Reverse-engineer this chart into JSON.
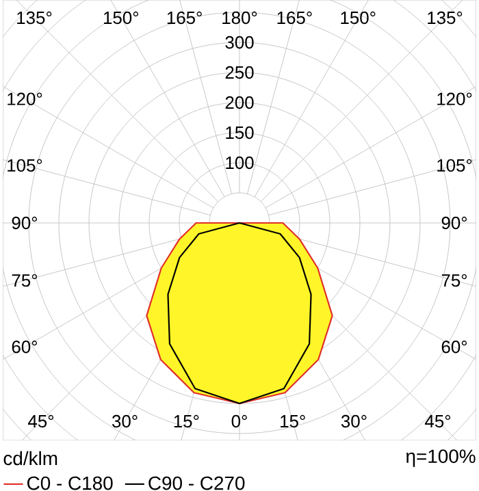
{
  "chart_data": {
    "type": "radar",
    "categories": [
      "180°",
      "165°",
      "150°",
      "135°",
      "120°",
      "105°",
      "90°",
      "75°",
      "60°",
      "45°",
      "30°",
      "15°",
      "0°",
      "15°",
      "30°",
      "45°",
      "60°",
      "75°",
      "90°",
      "105°",
      "120°",
      "135°",
      "150°",
      "165°"
    ],
    "series": [
      {
        "name": "C0 - C180",
        "color": "#e0302a",
        "values": [
          0,
          0,
          0,
          0,
          0,
          0,
          72,
          103,
          150,
          218,
          262,
          292,
          300,
          292,
          262,
          218,
          150,
          103,
          72,
          0,
          0,
          0,
          0,
          0
        ]
      },
      {
        "name": "C90 - C270",
        "color": "#000000",
        "values": [
          0,
          0,
          0,
          0,
          0,
          0,
          0,
          70,
          115,
          168,
          232,
          285,
          300,
          285,
          232,
          168,
          115,
          70,
          0,
          0,
          0,
          0,
          0,
          0
        ]
      }
    ],
    "ylim": [
      0,
      550
    ],
    "yticks": [
      100,
      150,
      200,
      250,
      300
    ],
    "grid": true,
    "legend": "bottom",
    "annotations": [
      "cd/klm",
      "η=100%"
    ]
  }
}
